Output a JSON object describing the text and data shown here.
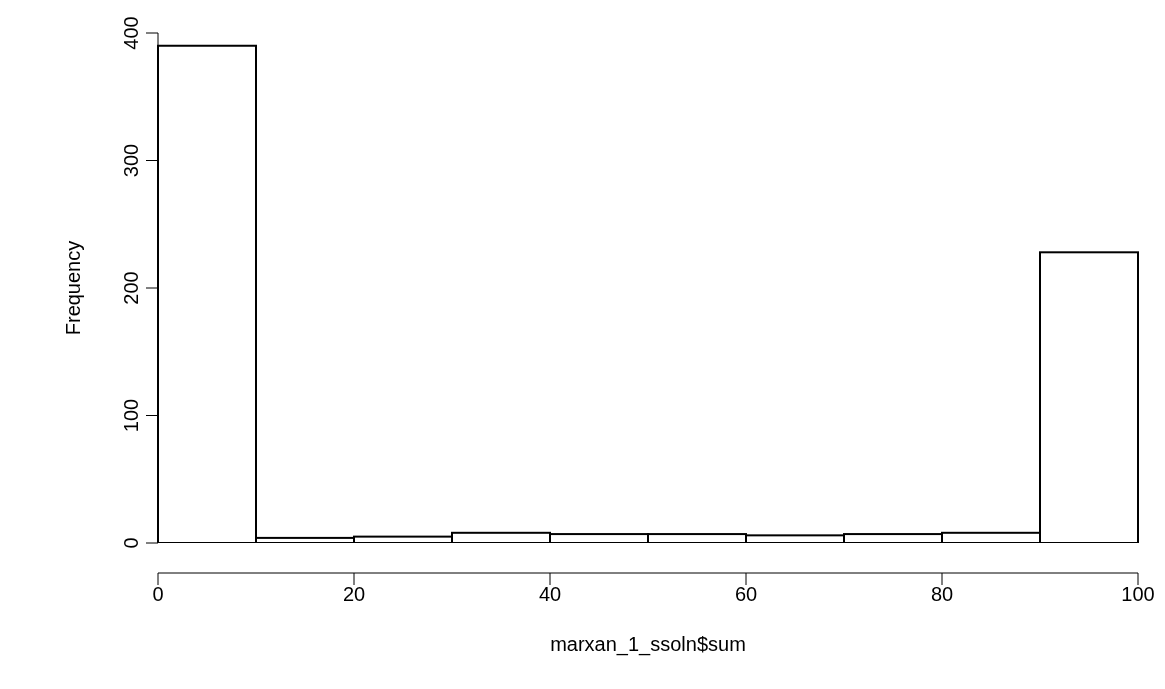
{
  "chart_data": {
    "type": "histogram",
    "xlabel": "marxan_1_ssoln$sum",
    "ylabel": "Frequency",
    "bins": [
      0,
      10,
      20,
      30,
      40,
      50,
      60,
      70,
      80,
      90,
      100
    ],
    "values": [
      390,
      4,
      5,
      8,
      7,
      7,
      6,
      7,
      8,
      228
    ],
    "color": "#ffffff",
    "xlim": [
      0,
      100
    ],
    "xticks": [
      0,
      20,
      40,
      60,
      80,
      100
    ],
    "ylim": [
      0,
      400
    ],
    "yticks": [
      0,
      100,
      200,
      300,
      400
    ],
    "grid": false
  }
}
